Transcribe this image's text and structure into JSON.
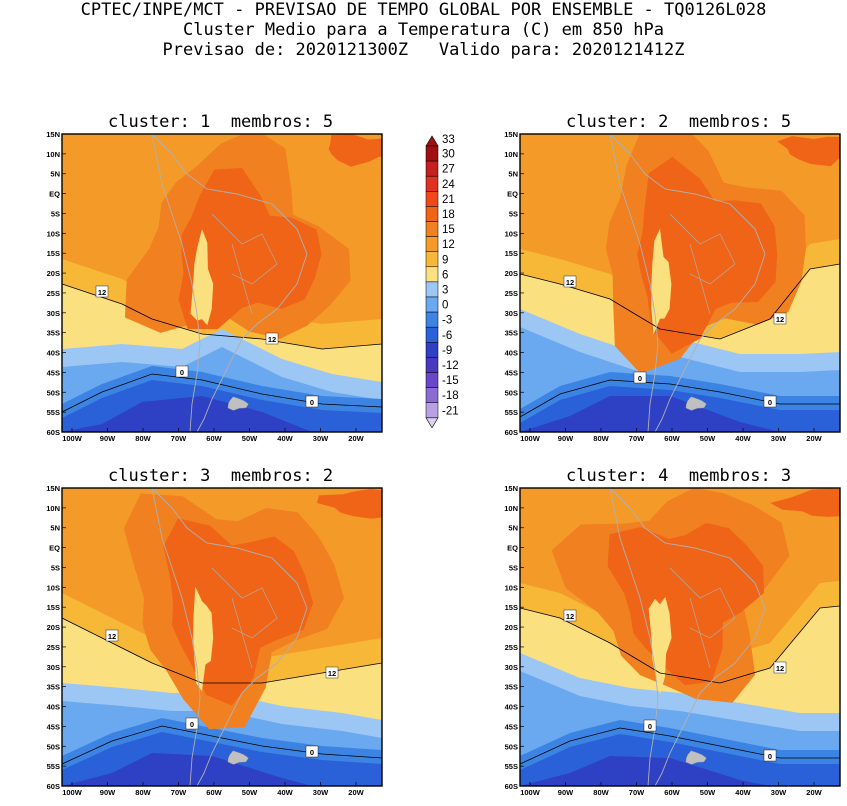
{
  "header": {
    "line1": "CPTEC/INPE/MCT - PREVISAO DE TEMPO GLOBAL POR ENSEMBLE - TQ0126L028",
    "line2": "Cluster Medio para a Temperatura (C) em 850 hPa",
    "line3": "Previsao de: 2020121300Z   Valido para: 2020121412Z"
  },
  "panels": [
    {
      "title": "cluster: 1  membros: 5"
    },
    {
      "title": "cluster: 2  membros: 5"
    },
    {
      "title": "cluster: 3  membros: 2"
    },
    {
      "title": "cluster: 4  membros: 3"
    }
  ],
  "axes": {
    "lat_labels": [
      "15N",
      "10N",
      "5N",
      "EQ",
      "5S",
      "10S",
      "15S",
      "20S",
      "25S",
      "30S",
      "35S",
      "40S",
      "45S",
      "50S",
      "55S",
      "60S"
    ],
    "lon_labels": [
      "100W",
      "90W",
      "80W",
      "70W",
      "60W",
      "50W",
      "40W",
      "30W",
      "20W"
    ]
  },
  "colorbar": {
    "labels": [
      "33",
      "30",
      "27",
      "24",
      "21",
      "18",
      "15",
      "12",
      "9",
      "6",
      "3",
      "0",
      "-3",
      "-6",
      "-9",
      "-12",
      "-15",
      "-18",
      "-21"
    ],
    "colors": [
      "#a01010",
      "#c42020",
      "#e03020",
      "#f04818",
      "#f06418",
      "#f08020",
      "#f49a28",
      "#f7b838",
      "#fbe080",
      "#9cc6f4",
      "#6aa8f0",
      "#3c84e4",
      "#2a60d8",
      "#2e40c4",
      "#4a38c0",
      "#6848c8",
      "#8a6cd4",
      "#b6a2e2",
      "#dcd0f2"
    ]
  },
  "contour_labels": {
    "twelve": "12",
    "zero": "0"
  }
}
